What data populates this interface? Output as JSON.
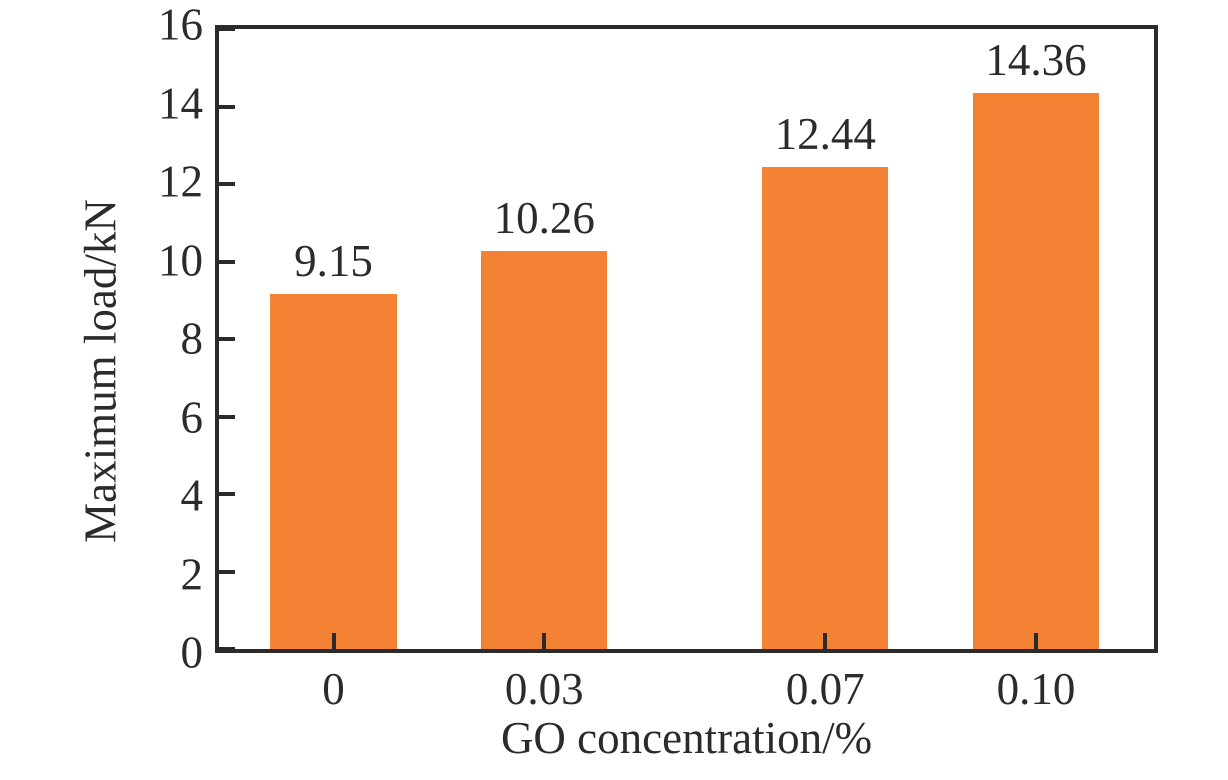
{
  "style": {
    "background": "#ffffff",
    "text_color": "#2b2b2b",
    "axis_color": "#2b2b2b",
    "bar_color": "#f48235"
  },
  "chart_data": {
    "type": "bar",
    "title": "",
    "xlabel": "GO concentration/%",
    "ylabel": "Maximum load/kN",
    "x": [
      0,
      0.03,
      0.07,
      0.1
    ],
    "categories": [
      "0",
      "0.03",
      "0.07",
      "0.10"
    ],
    "values": [
      9.15,
      10.26,
      12.44,
      14.36
    ],
    "bar_labels": [
      "9.15",
      "10.26",
      "12.44",
      "14.36"
    ],
    "yticks": [
      0,
      2,
      4,
      6,
      8,
      10,
      12,
      14,
      16
    ],
    "ytick_labels": [
      "0",
      "2",
      "4",
      "6",
      "8",
      "10",
      "12",
      "14",
      "16"
    ],
    "ylim": [
      0,
      16
    ],
    "xlim": [
      -0.0163,
      0.1168
    ],
    "bar_width_x": 0.018,
    "grid": false,
    "legend_position": "none",
    "spines": "box",
    "tick_direction": "in"
  }
}
